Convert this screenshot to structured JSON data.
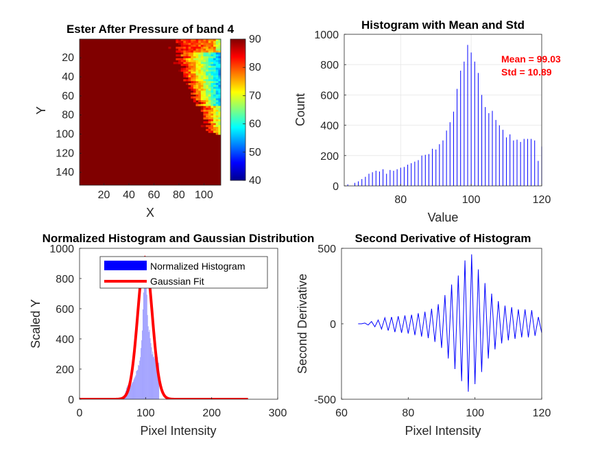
{
  "figure": {
    "background": "#ffffff"
  },
  "chart_data": [
    {
      "id": "p1",
      "type": "heatmap",
      "title": "Ester After Pressure of band 4",
      "xlabel": "X",
      "ylabel": "Y",
      "xticks": [
        20,
        40,
        60,
        80,
        100
      ],
      "yticks": [
        20,
        40,
        60,
        80,
        100,
        120,
        140
      ],
      "xlim": [
        0.5,
        113.5
      ],
      "ylim": [
        0.5,
        153.5
      ],
      "y_reversed": true,
      "colormap": "jet",
      "colorbar": {
        "ticks": [
          40,
          50,
          60,
          70,
          80,
          90
        ],
        "clim": [
          40,
          90
        ]
      },
      "description_values": {
        "background_value": 90,
        "hot_region": "right edge columns 75-113, rows 1-100, values 55-90"
      }
    },
    {
      "id": "p2",
      "type": "bar",
      "title": "Histogram with Mean and Std",
      "xlabel": "Value",
      "ylabel": "Count",
      "xlim": [
        64,
        120
      ],
      "ylim": [
        0,
        1000
      ],
      "xticks": [
        80,
        100,
        120
      ],
      "yticks": [
        0,
        200,
        400,
        600,
        800,
        1000
      ],
      "grid": true,
      "color": "#0000ff",
      "annotations": [
        "Mean = 99.03",
        "Std = 10.89"
      ],
      "x": [
        65,
        67,
        68,
        69,
        70,
        71,
        72,
        73,
        74,
        75,
        76,
        77,
        78,
        79,
        80,
        81,
        82,
        83,
        84,
        85,
        86,
        87,
        88,
        89,
        90,
        91,
        92,
        93,
        94,
        95,
        96,
        97,
        98,
        99,
        100,
        101,
        102,
        103,
        104,
        105,
        106,
        107,
        108,
        109,
        110,
        111,
        112,
        113,
        114,
        115,
        116,
        117,
        118,
        119,
        120
      ],
      "values": [
        10,
        20,
        30,
        45,
        60,
        80,
        90,
        100,
        95,
        110,
        80,
        105,
        100,
        110,
        120,
        125,
        140,
        150,
        160,
        170,
        200,
        205,
        210,
        245,
        240,
        275,
        300,
        365,
        420,
        490,
        640,
        760,
        820,
        930,
        880,
        820,
        745,
        600,
        520,
        480,
        495,
        435,
        400,
        370,
        320,
        340,
        300,
        305,
        290,
        310,
        310,
        310,
        300,
        165,
        260
      ]
    },
    {
      "id": "p3",
      "type": "bar",
      "title": "Normalized Histogram and Gaussian Distribution",
      "xlabel": "Pixel Intensity",
      "ylabel": "Scaled Y",
      "xlim": [
        0,
        300
      ],
      "ylim": [
        0,
        1000
      ],
      "xticks": [
        0,
        100,
        200,
        300
      ],
      "yticks": [
        0,
        200,
        400,
        600,
        800,
        1000
      ],
      "legend": {
        "placement": "top-right",
        "entries": [
          "Normalized Histogram",
          "Gaussian Fit"
        ]
      },
      "series": [
        {
          "name": "Normalized Histogram",
          "style": "bar",
          "color": "#0000ff",
          "source": "histogram of p2"
        },
        {
          "name": "Gaussian Fit",
          "style": "line",
          "color": "#ff0000",
          "mean": 99.03,
          "std": 10.89,
          "peak": 940,
          "x_range": [
            0,
            255
          ]
        }
      ]
    },
    {
      "id": "p4",
      "type": "line",
      "title": "Second Derivative of Histogram",
      "xlabel": "Pixel Intensity",
      "ylabel": "Second Derivative",
      "xlim": [
        60,
        120
      ],
      "ylim": [
        -500,
        500
      ],
      "xticks": [
        60,
        80,
        100,
        120
      ],
      "yticks": [
        -500,
        0,
        500
      ],
      "color": "#0000ff",
      "x": [
        65,
        66,
        67,
        68,
        69,
        70,
        71,
        72,
        73,
        74,
        75,
        76,
        77,
        78,
        79,
        80,
        81,
        82,
        83,
        84,
        85,
        86,
        87,
        88,
        89,
        90,
        91,
        92,
        93,
        94,
        95,
        96,
        97,
        98,
        99,
        100,
        101,
        102,
        103,
        104,
        105,
        106,
        107,
        108,
        109,
        110,
        111,
        112,
        113,
        114,
        115,
        116,
        117,
        118,
        119,
        120
      ],
      "values": [
        0,
        0,
        5,
        -8,
        15,
        -20,
        25,
        -35,
        40,
        -45,
        45,
        -55,
        50,
        -60,
        55,
        -65,
        60,
        -75,
        70,
        -85,
        80,
        -95,
        100,
        -120,
        130,
        -160,
        190,
        -230,
        260,
        -300,
        320,
        -380,
        420,
        -450,
        460,
        -400,
        360,
        -320,
        270,
        -230,
        200,
        -170,
        150,
        -130,
        120,
        -110,
        110,
        -100,
        95,
        -90,
        95,
        -90,
        90,
        -80,
        45,
        -60
      ]
    }
  ]
}
